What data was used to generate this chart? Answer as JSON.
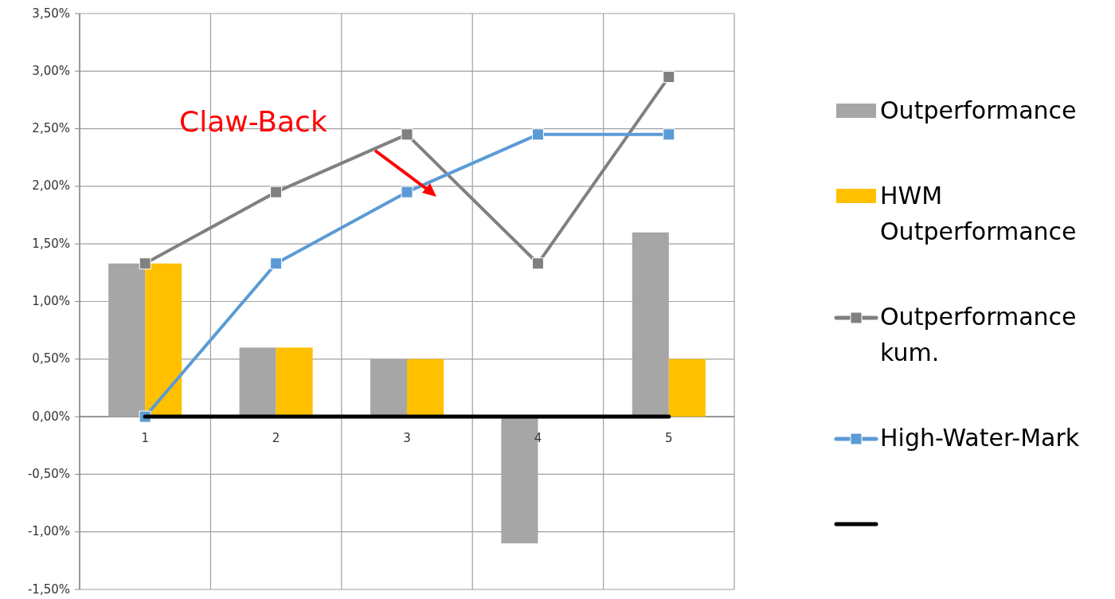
{
  "chart_data": {
    "type": "bar",
    "categories": [
      "1",
      "2",
      "3",
      "4",
      "5"
    ],
    "series": [
      {
        "name": "Outperformance",
        "color": "#a6a6a6",
        "values": [
          1.33,
          0.6,
          0.5,
          -1.1,
          1.6
        ]
      },
      {
        "name": "HWM Outperformance",
        "color": "#ffc000",
        "values": [
          1.33,
          0.6,
          0.5,
          0,
          0.5
        ]
      },
      {
        "name": "Outperformance kum.",
        "type": "line",
        "color": "#808080",
        "marker": "square",
        "values": [
          1.33,
          1.95,
          2.45,
          1.33,
          2.95
        ]
      },
      {
        "name": "High-Water-Mark",
        "type": "line",
        "color": "#5b9bd5",
        "marker": "square",
        "values": [
          0,
          1.33,
          1.95,
          2.45,
          2.45
        ]
      },
      {
        "type": "line",
        "color": "#000000",
        "marker": "none",
        "values": [
          0,
          0,
          0,
          0,
          0
        ]
      }
    ],
    "ylim": [
      -1.5,
      3.5
    ],
    "yticks": [
      {
        "value": -1.5,
        "label": "-1,50%"
      },
      {
        "value": -1,
        "label": "-1,00%"
      },
      {
        "value": -0.5,
        "label": "-0,50%"
      },
      {
        "value": 0,
        "label": "0,00%"
      },
      {
        "value": 0.5,
        "label": "0,50%"
      },
      {
        "value": 1,
        "label": "1,00%"
      },
      {
        "value": 1.5,
        "label": "1,50%"
      },
      {
        "value": 2,
        "label": "2,00%"
      },
      {
        "value": 2.5,
        "label": "2,50%"
      },
      {
        "value": 3,
        "label": "3,00%"
      },
      {
        "value": 3.5,
        "label": "3,50%"
      }
    ],
    "grid": true,
    "legend": "right",
    "annotations": [
      "Claw-Back"
    ]
  }
}
